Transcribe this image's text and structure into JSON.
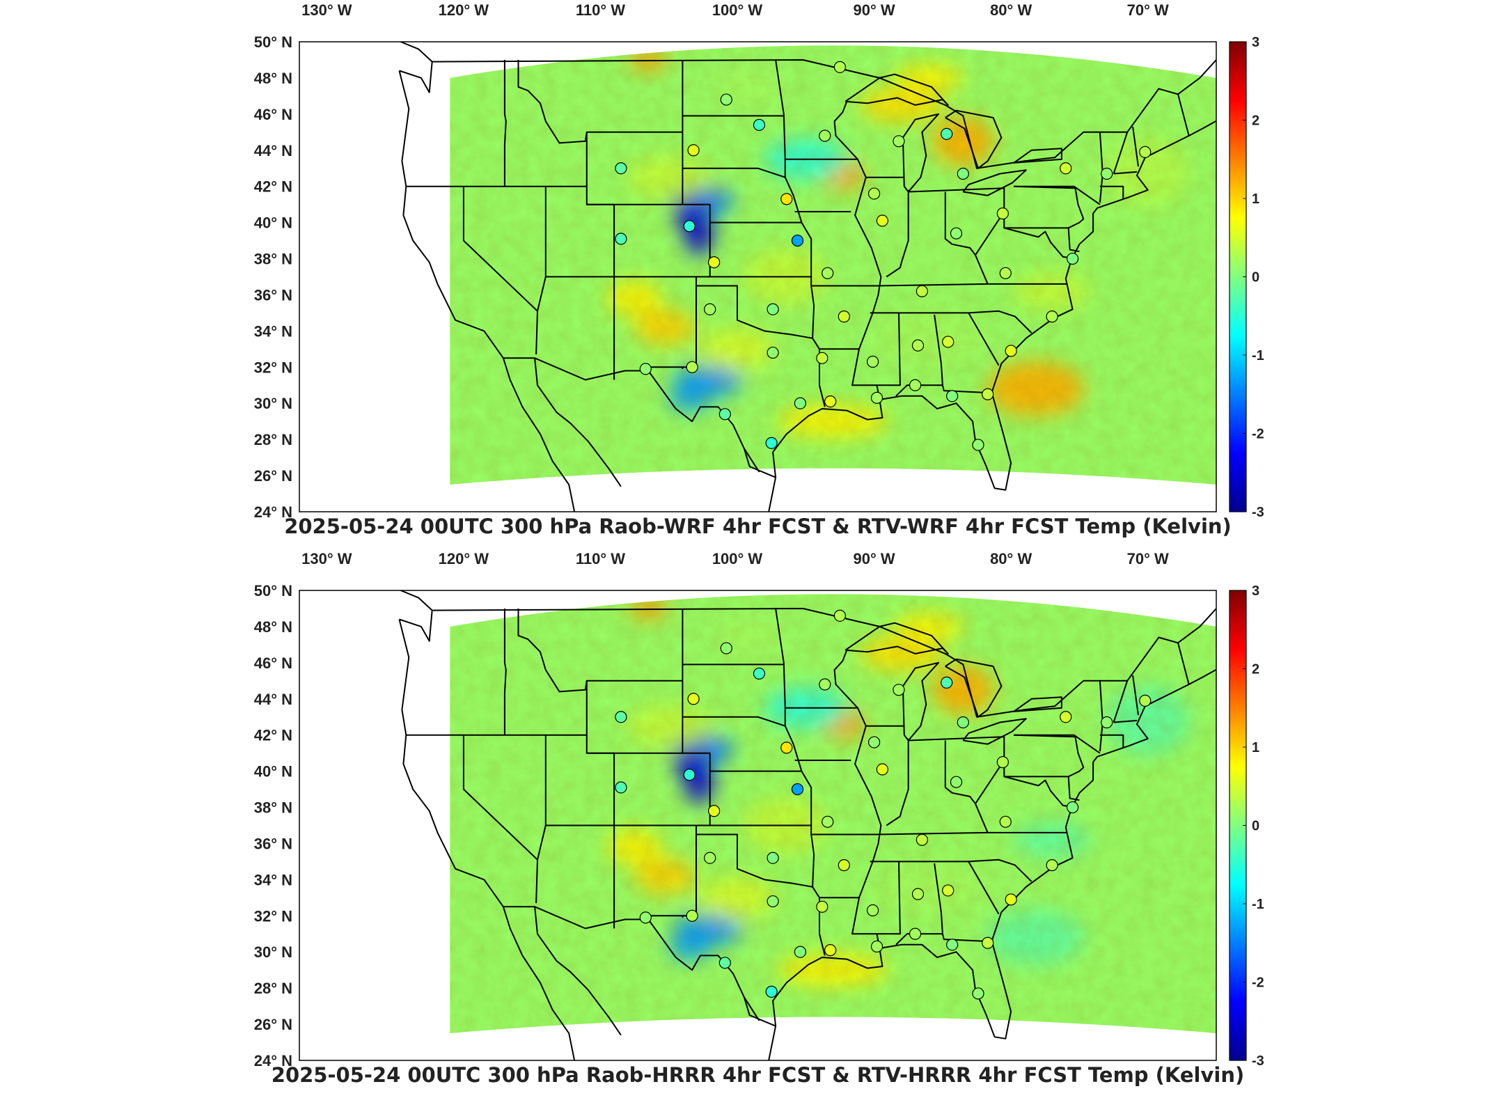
{
  "figure": {
    "panels": [
      {
        "title": "2025-05-24 00UTC 300 hPa Raob-WRF 4hr FCST & RTV-WRF 4hr FCST Temp (Kelvin)",
        "model": "WRF",
        "station_values_K": [
          0.3,
          0.1,
          -0.4,
          0.2,
          0.2,
          -0.3,
          0.0,
          0.5,
          0.1,
          0.3,
          0.6,
          -0.2,
          0.9,
          0.3,
          0.6,
          0.1,
          0.4,
          -0.5,
          -0.3,
          -1.3,
          0.6,
          0.2,
          0.4,
          0.3,
          0.0,
          0.2,
          0.0,
          0.5,
          0.3,
          0.1,
          0.4,
          0.2,
          0.3,
          0.5,
          0.6,
          0.1,
          0.3,
          -0.2,
          -0.5,
          0.6,
          0.2,
          0.0,
          0.1,
          0.4,
          0.0,
          0.2
        ]
      },
      {
        "title": "2025-05-24 00UTC 300 hPa Raob-HRRR 4hr FCST & RTV-HRRR 4hr FCST Temp (Kelvin)",
        "model": "HRRR",
        "station_values_K": [
          0.3,
          0.1,
          -0.4,
          0.2,
          0.2,
          -0.3,
          0.0,
          0.5,
          0.1,
          0.3,
          0.6,
          -0.2,
          0.9,
          0.1,
          0.6,
          0.1,
          0.3,
          -0.5,
          -0.3,
          -1.3,
          0.6,
          0.2,
          0.4,
          0.3,
          0.0,
          0.2,
          0.0,
          0.5,
          0.3,
          0.1,
          0.4,
          0.2,
          0.3,
          0.5,
          0.6,
          0.1,
          0.3,
          -0.2,
          -0.5,
          0.6,
          0.2,
          0.0,
          0.1,
          0.4,
          0.0,
          0.2
        ]
      }
    ],
    "lon_labels": [
      "130° W",
      "120° W",
      "110° W",
      "100° W",
      "90° W",
      "80° W",
      "70° W"
    ],
    "lat_labels": [
      "50° N",
      "48° N",
      "46° N",
      "44° N",
      "42° N",
      "40° N",
      "38° N",
      "36° N",
      "34° N",
      "32° N",
      "30° N",
      "28° N",
      "26° N",
      "24° N"
    ],
    "colorbar": {
      "labels": [
        "3",
        "2",
        "1",
        "0",
        "-1",
        "-2",
        "-3"
      ],
      "range": [
        -3,
        3
      ],
      "colormap": "jet"
    },
    "map_extent": {
      "lon": [
        -132,
        -65
      ],
      "lat": [
        24,
        50
      ]
    },
    "stations": [
      {
        "lon": -92.5,
        "lat": 48.6
      },
      {
        "lon": -100.8,
        "lat": 46.8
      },
      {
        "lon": -98.4,
        "lat": 45.4
      },
      {
        "lon": -93.6,
        "lat": 44.8
      },
      {
        "lon": -88.2,
        "lat": 44.5
      },
      {
        "lon": -84.7,
        "lat": 44.9
      },
      {
        "lon": -83.5,
        "lat": 42.7
      },
      {
        "lon": -76.0,
        "lat": 43.0
      },
      {
        "lon": -73.0,
        "lat": 42.7
      },
      {
        "lon": -70.2,
        "lat": 43.9
      },
      {
        "lon": -103.2,
        "lat": 44.0
      },
      {
        "lon": -108.5,
        "lat": 43.0
      },
      {
        "lon": -96.4,
        "lat": 41.3
      },
      {
        "lon": -90.0,
        "lat": 41.6
      },
      {
        "lon": -89.4,
        "lat": 40.1
      },
      {
        "lon": -84.0,
        "lat": 39.4
      },
      {
        "lon": -80.6,
        "lat": 40.5
      },
      {
        "lon": -103.5,
        "lat": 39.8
      },
      {
        "lon": -108.5,
        "lat": 39.1
      },
      {
        "lon": -95.6,
        "lat": 39.0
      },
      {
        "lon": -101.7,
        "lat": 37.8
      },
      {
        "lon": -93.4,
        "lat": 37.2
      },
      {
        "lon": -86.5,
        "lat": 36.2
      },
      {
        "lon": -80.4,
        "lat": 37.2
      },
      {
        "lon": -75.5,
        "lat": 38.0
      },
      {
        "lon": -102.0,
        "lat": 35.2
      },
      {
        "lon": -97.4,
        "lat": 35.2
      },
      {
        "lon": -92.2,
        "lat": 34.8
      },
      {
        "lon": -77.0,
        "lat": 34.8
      },
      {
        "lon": -97.4,
        "lat": 32.8
      },
      {
        "lon": -93.8,
        "lat": 32.5
      },
      {
        "lon": -90.1,
        "lat": 32.3
      },
      {
        "lon": -86.8,
        "lat": 33.2
      },
      {
        "lon": -84.6,
        "lat": 33.4
      },
      {
        "lon": -80.0,
        "lat": 32.9
      },
      {
        "lon": -106.7,
        "lat": 31.9
      },
      {
        "lon": -103.3,
        "lat": 32.0
      },
      {
        "lon": -100.9,
        "lat": 29.4
      },
      {
        "lon": -97.5,
        "lat": 27.8
      },
      {
        "lon": -93.2,
        "lat": 30.1
      },
      {
        "lon": -89.8,
        "lat": 30.3
      },
      {
        "lon": -84.3,
        "lat": 30.4
      },
      {
        "lon": -82.4,
        "lat": 27.7
      },
      {
        "lon": -81.7,
        "lat": 30.5
      },
      {
        "lon": -95.4,
        "lat": 30.0
      },
      {
        "lon": -87.0,
        "lat": 31.0
      }
    ]
  }
}
